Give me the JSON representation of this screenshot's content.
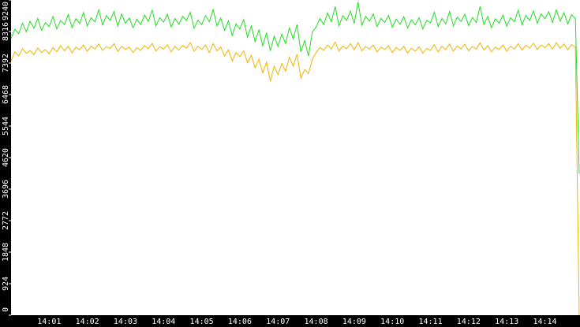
{
  "chart_data": {
    "type": "line",
    "categories": [
      null,
      null,
      null,
      null,
      null,
      null,
      null,
      null,
      null,
      null,
      "14:01",
      null,
      null,
      null,
      null,
      null,
      null,
      null,
      null,
      null,
      "14:02",
      null,
      null,
      null,
      null,
      null,
      null,
      null,
      null,
      null,
      "14:03",
      null,
      null,
      null,
      null,
      null,
      null,
      null,
      null,
      null,
      "14:04",
      null,
      null,
      null,
      null,
      null,
      null,
      null,
      null,
      null,
      "14:05",
      null,
      null,
      null,
      null,
      null,
      null,
      null,
      null,
      null,
      "14:06",
      null,
      null,
      null,
      null,
      null,
      null,
      null,
      null,
      null,
      "14:07",
      null,
      null,
      null,
      null,
      null,
      null,
      null,
      null,
      null,
      "14:08",
      null,
      null,
      null,
      null,
      null,
      null,
      null,
      null,
      null,
      "14:09",
      null,
      null,
      null,
      null,
      null,
      null,
      null,
      null,
      null,
      "14:10",
      null,
      null,
      null,
      null,
      null,
      null,
      null,
      null,
      null,
      "14:11",
      null,
      null,
      null,
      null,
      null,
      null,
      null,
      null,
      null,
      "14:12",
      null,
      null,
      null,
      null,
      null,
      null,
      null,
      null,
      null,
      "14:13",
      null,
      null,
      null,
      null,
      null,
      null,
      null,
      null,
      null,
      "14:14",
      null,
      null,
      null,
      null,
      null,
      null,
      null,
      null,
      null
    ],
    "series": [
      {
        "color": "#22dd22",
        "values": [
          8120,
          8380,
          8250,
          8560,
          8310,
          8620,
          8410,
          8700,
          8350,
          8580,
          8460,
          8760,
          8390,
          8640,
          8520,
          8810,
          8430,
          8690,
          8550,
          8870,
          8480,
          8720,
          8600,
          8950,
          8510,
          8780,
          8640,
          8900,
          8470,
          8830,
          8560,
          8710,
          8430,
          8680,
          8520,
          8800,
          8610,
          8940,
          8480,
          8720,
          8590,
          8820,
          8450,
          8700,
          8530,
          8760,
          8640,
          8880,
          8410,
          8650,
          8520,
          8780,
          8600,
          8960,
          8480,
          8710,
          8350,
          8630,
          8200,
          8540,
          8390,
          8670,
          8150,
          8480,
          8020,
          8360,
          7900,
          8280,
          7750,
          8180,
          7880,
          8240,
          7960,
          8420,
          8100,
          8520,
          7720,
          8050,
          7600,
          8300,
          8450,
          8700,
          8520,
          8860,
          8600,
          9050,
          8480,
          8780,
          8640,
          8920,
          8550,
          9180,
          8500,
          8760,
          8620,
          8830,
          8460,
          8700,
          8580,
          8790,
          8440,
          8680,
          8530,
          8750,
          8420,
          8660,
          8510,
          8720,
          8390,
          8640,
          8570,
          8880,
          8460,
          8700,
          8540,
          8900,
          8480,
          8740,
          8610,
          8820,
          8490,
          8730,
          8580,
          9050,
          8520,
          8760,
          8430,
          8690,
          8560,
          8800,
          8470,
          8720,
          8600,
          8940,
          8510,
          8790,
          8640,
          8920,
          8560,
          8830,
          8690,
          8900,
          8580,
          8950,
          8620,
          8870,
          8540,
          8810,
          8700,
          4150
        ]
      },
      {
        "color": "#f0b400",
        "values": [
          7450,
          7720,
          7600,
          7810,
          7680,
          7760,
          7640,
          7830,
          7700,
          7790,
          7660,
          7850,
          7720,
          7900,
          7750,
          7880,
          7690,
          7860,
          7780,
          7920,
          7740,
          7890,
          7800,
          7950,
          7760,
          7870,
          7820,
          7960,
          7730,
          7880,
          7790,
          7860,
          7700,
          7840,
          7760,
          7900,
          7810,
          7970,
          7740,
          7870,
          7800,
          7930,
          7720,
          7880,
          7770,
          7910,
          7830,
          7990,
          7740,
          7880,
          7790,
          7920,
          7700,
          7960,
          7750,
          7860,
          7600,
          7780,
          7450,
          7700,
          7580,
          7750,
          7400,
          7620,
          7250,
          7500,
          7100,
          7420,
          6850,
          7300,
          7050,
          7380,
          7150,
          7560,
          7300,
          7650,
          6950,
          7200,
          7080,
          7500,
          7700,
          7850,
          7760,
          7920,
          7800,
          8000,
          7740,
          7890,
          7810,
          7960,
          7780,
          7990,
          7750,
          7880,
          7800,
          7920,
          7720,
          7860,
          7790,
          7900,
          7700,
          7850,
          7760,
          7880,
          7690,
          7830,
          7740,
          7870,
          7680,
          7820,
          7760,
          7930,
          7720,
          7880,
          7790,
          7950,
          7740,
          7890,
          7810,
          7940,
          7750,
          7880,
          7800,
          7990,
          7770,
          7900,
          7720,
          7860,
          7790,
          7920,
          7740,
          7890,
          7800,
          7960,
          7770,
          7910,
          7830,
          7970,
          7790,
          7920,
          7840,
          7960,
          7800,
          7990,
          7820,
          7950,
          7780,
          7930,
          7860,
          0
        ]
      }
    ],
    "ylim": [
      0,
      9240
    ],
    "yticks": [
      0,
      924,
      1848,
      2772,
      3696,
      4620,
      5544,
      6468,
      7392,
      8316,
      9240
    ]
  }
}
